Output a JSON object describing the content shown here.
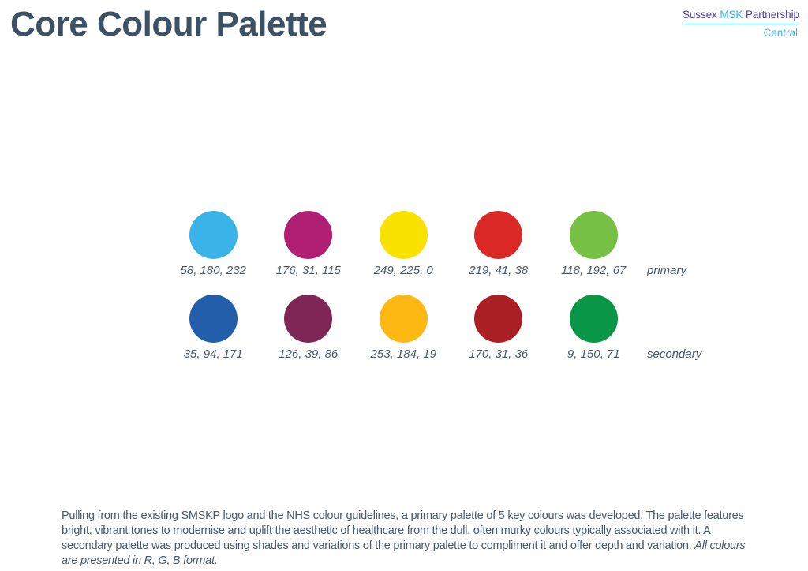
{
  "header": {
    "title": "Core Colour Palette",
    "logo": {
      "brand_prefix": "Sussex ",
      "brand_highlight": "MSK",
      "brand_suffix": " Partnership",
      "sub": "Central",
      "purple_hex": "#523f97",
      "cyan_hex": "#3ab4e8"
    }
  },
  "palette": {
    "rows": [
      {
        "name": "primary",
        "swatches": [
          {
            "label": "58, 180, 232",
            "rgb": [
              58,
              180,
              232
            ]
          },
          {
            "label": "176, 31, 115",
            "rgb": [
              176,
              31,
              115
            ]
          },
          {
            "label": "249, 225, 0",
            "rgb": [
              249,
              225,
              0
            ]
          },
          {
            "label": "219, 41, 38",
            "rgb": [
              219,
              41,
              38
            ]
          },
          {
            "label": "118, 192, 67",
            "rgb": [
              118,
              192,
              67
            ]
          }
        ]
      },
      {
        "name": "secondary",
        "swatches": [
          {
            "label": "35, 94, 171",
            "rgb": [
              35,
              94,
              171
            ]
          },
          {
            "label": "126, 39, 86",
            "rgb": [
              126,
              39,
              86
            ]
          },
          {
            "label": "253, 184, 19",
            "rgb": [
              253,
              184,
              19
            ]
          },
          {
            "label": "170, 31, 36",
            "rgb": [
              170,
              31,
              36
            ]
          },
          {
            "label": "9, 150, 71",
            "rgb": [
              9,
              150,
              71
            ]
          }
        ]
      }
    ]
  },
  "description": {
    "normal": "Pulling from the existing SMSKP logo and the NHS colour guidelines, a primary palette of 5 key colours was developed. The palette features bright, vibrant tones to modernise and uplift the aesthetic of healthcare from the dull, often murky colours typically associated with it. A secondary palette was produced using shades and variations of the primary palette to compliment it and offer depth and variation. ",
    "italic": "All colours are presented in R, G, B format."
  }
}
